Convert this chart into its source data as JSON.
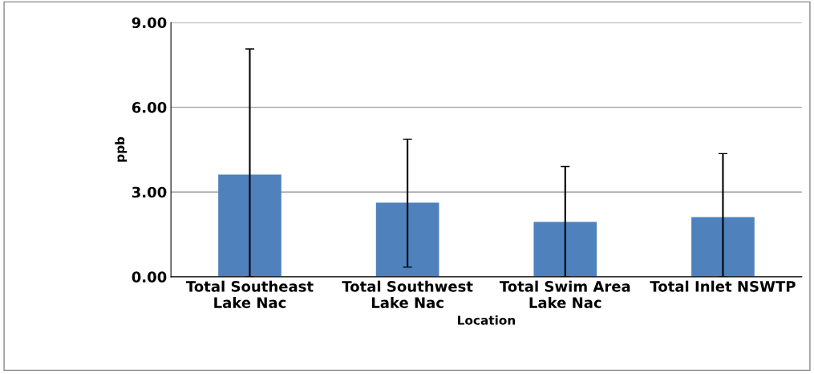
{
  "chart_data": {
    "type": "bar",
    "xlabel": "Location",
    "ylabel": "ppb",
    "categories": [
      "Total Southeast\nLake Nac",
      "Total Southwest\nLake Nac",
      "Total Swim Area\nLake Nac",
      "Total Inlet NSWTP"
    ],
    "values": [
      3.62,
      2.62,
      1.94,
      2.11
    ],
    "errors": [
      [
        0,
        8.06
      ],
      [
        0.34,
        4.87
      ],
      [
        0,
        3.9
      ],
      [
        0,
        4.36
      ]
    ],
    "color": "#4f81bd",
    "ylim": [
      0,
      9
    ],
    "yticks": [
      {
        "value": 0,
        "label": "0.00"
      },
      {
        "value": 3,
        "label": "3.00"
      },
      {
        "value": 6,
        "label": "6.00"
      },
      {
        "value": 9,
        "label": "9.00"
      }
    ],
    "grid": "y",
    "legend": false
  }
}
